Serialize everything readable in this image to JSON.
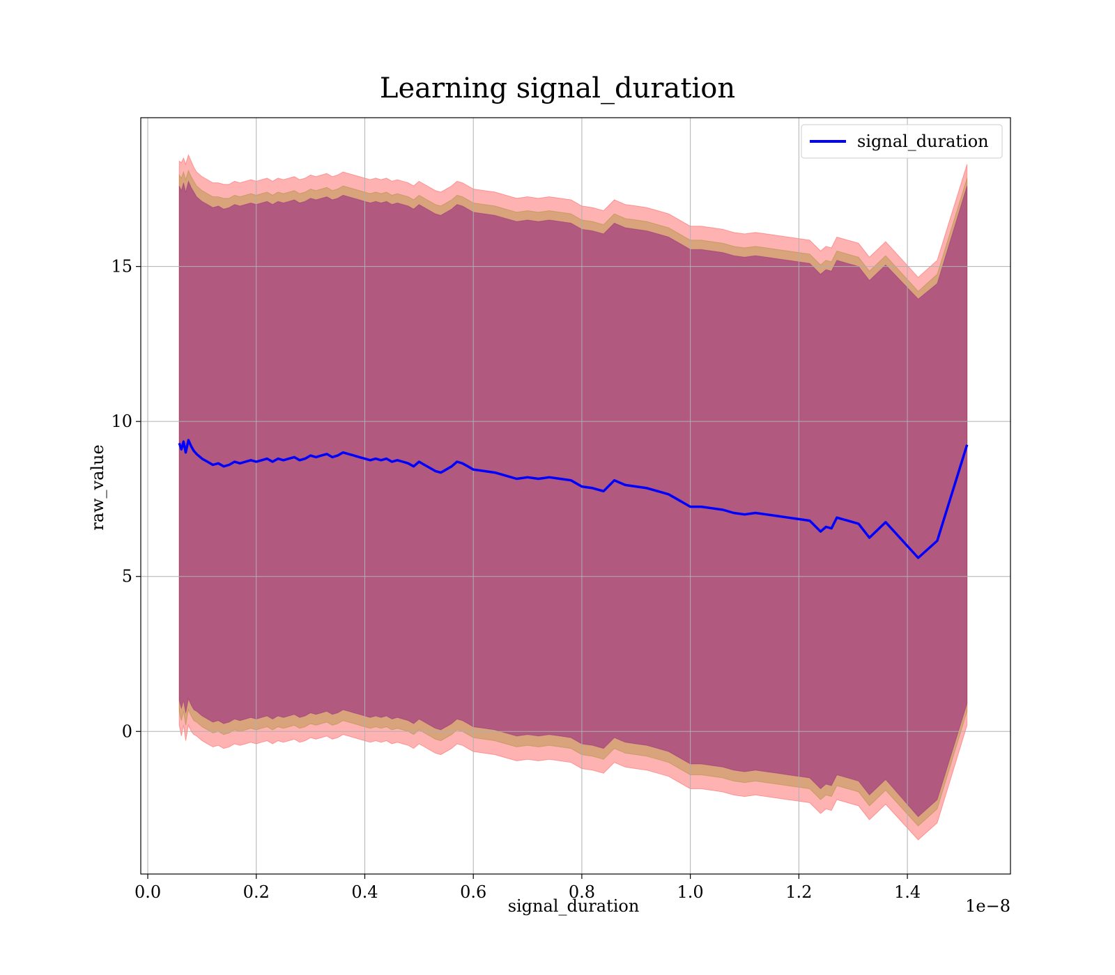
{
  "chart_data": {
    "type": "line",
    "title": "Learning signal_duration",
    "xlabel": "signal_duration",
    "ylabel": "raw_value",
    "x_offset_label": "1e−8",
    "xlim": [
      -0.0129,
      1.59
    ],
    "ylim": [
      -4.6,
      19.8
    ],
    "x_ticks": [
      0.0,
      0.2,
      0.4,
      0.6,
      0.8,
      1.0,
      1.2,
      1.4
    ],
    "x_tick_labels": [
      "0.0",
      "0.2",
      "0.4",
      "0.6",
      "0.8",
      "1.0",
      "1.2",
      "1.4"
    ],
    "y_ticks": [
      0,
      5,
      10,
      15
    ],
    "y_tick_labels": [
      "0",
      "5",
      "10",
      "15"
    ],
    "grid": true,
    "legend_position": "top-right",
    "colors": {
      "line": "#0000ff",
      "outer_band": "#ff0000",
      "mid_band": "#808000",
      "inner_band": "#800080"
    },
    "x_unit_scale": "1e-8",
    "series": [
      {
        "name": "signal_duration",
        "x": [
          0.058,
          0.062,
          0.066,
          0.07,
          0.075,
          0.08,
          0.085,
          0.09,
          0.1,
          0.11,
          0.12,
          0.13,
          0.14,
          0.15,
          0.16,
          0.17,
          0.18,
          0.19,
          0.2,
          0.21,
          0.22,
          0.23,
          0.24,
          0.25,
          0.26,
          0.27,
          0.28,
          0.29,
          0.3,
          0.31,
          0.32,
          0.33,
          0.34,
          0.35,
          0.36,
          0.37,
          0.38,
          0.39,
          0.4,
          0.41,
          0.42,
          0.43,
          0.44,
          0.45,
          0.46,
          0.47,
          0.48,
          0.49,
          0.5,
          0.51,
          0.52,
          0.53,
          0.54,
          0.55,
          0.56,
          0.57,
          0.58,
          0.59,
          0.6,
          0.62,
          0.64,
          0.66,
          0.68,
          0.7,
          0.72,
          0.74,
          0.76,
          0.78,
          0.8,
          0.82,
          0.84,
          0.86,
          0.88,
          0.9,
          0.92,
          0.94,
          0.96,
          0.98,
          1.0,
          1.02,
          1.04,
          1.06,
          1.08,
          1.1,
          1.12,
          1.14,
          1.16,
          1.18,
          1.2,
          1.22,
          1.24,
          1.25,
          1.26,
          1.27,
          1.28,
          1.29,
          1.3,
          1.31,
          1.33,
          1.36,
          1.42,
          1.455,
          1.51
        ],
        "values": [
          9.3,
          9.1,
          9.35,
          9.0,
          9.4,
          9.2,
          9.05,
          8.95,
          8.8,
          8.7,
          8.6,
          8.65,
          8.55,
          8.6,
          8.7,
          8.65,
          8.7,
          8.75,
          8.7,
          8.75,
          8.8,
          8.7,
          8.8,
          8.75,
          8.8,
          8.85,
          8.75,
          8.8,
          8.9,
          8.85,
          8.9,
          8.95,
          8.85,
          8.9,
          9.0,
          8.95,
          8.9,
          8.85,
          8.8,
          8.75,
          8.8,
          8.75,
          8.8,
          8.7,
          8.75,
          8.7,
          8.65,
          8.55,
          8.7,
          8.6,
          8.5,
          8.4,
          8.35,
          8.45,
          8.55,
          8.7,
          8.65,
          8.55,
          8.45,
          8.4,
          8.35,
          8.25,
          8.15,
          8.2,
          8.15,
          8.2,
          8.15,
          8.1,
          7.9,
          7.85,
          7.75,
          8.1,
          7.95,
          7.9,
          7.85,
          7.75,
          7.65,
          7.45,
          7.25,
          7.25,
          7.2,
          7.15,
          7.05,
          7.0,
          7.05,
          7.0,
          6.95,
          6.9,
          6.85,
          6.8,
          6.45,
          6.6,
          6.55,
          6.9,
          6.85,
          6.8,
          6.75,
          6.7,
          6.25,
          6.75,
          5.6,
          6.15,
          9.25
        ]
      }
    ],
    "bands": [
      {
        "color": "outer_band",
        "upper": [
          18.4,
          18.35,
          18.5,
          18.3,
          18.6,
          18.4,
          18.2,
          18.05,
          17.9,
          17.8,
          17.7,
          17.7,
          17.65,
          17.65,
          17.75,
          17.7,
          17.75,
          17.8,
          17.75,
          17.8,
          17.85,
          17.75,
          17.85,
          17.8,
          17.85,
          17.9,
          17.8,
          17.85,
          17.95,
          17.9,
          17.95,
          18.0,
          17.9,
          17.95,
          18.05,
          18.0,
          17.95,
          17.9,
          17.85,
          17.8,
          17.85,
          17.8,
          17.85,
          17.75,
          17.8,
          17.75,
          17.7,
          17.6,
          17.75,
          17.65,
          17.55,
          17.45,
          17.4,
          17.5,
          17.6,
          17.75,
          17.7,
          17.6,
          17.5,
          17.45,
          17.4,
          17.3,
          17.2,
          17.25,
          17.2,
          17.25,
          17.2,
          17.15,
          16.95,
          16.9,
          16.8,
          17.15,
          17.0,
          16.95,
          16.9,
          16.8,
          16.7,
          16.5,
          16.3,
          16.3,
          16.25,
          16.2,
          16.1,
          16.05,
          16.1,
          16.05,
          16.0,
          15.95,
          15.9,
          15.85,
          15.5,
          15.65,
          15.6,
          15.95,
          15.9,
          15.85,
          15.8,
          15.75,
          15.3,
          15.8,
          14.65,
          15.2,
          18.3
        ],
        "lower": [
          0.2,
          -0.15,
          0.2,
          -0.3,
          0.2,
          0.0,
          -0.1,
          -0.15,
          -0.3,
          -0.4,
          -0.5,
          -0.45,
          -0.55,
          -0.5,
          -0.4,
          -0.45,
          -0.4,
          -0.35,
          -0.4,
          -0.35,
          -0.3,
          -0.4,
          -0.3,
          -0.35,
          -0.3,
          -0.25,
          -0.35,
          -0.3,
          -0.2,
          -0.25,
          -0.2,
          -0.15,
          -0.25,
          -0.2,
          -0.1,
          -0.15,
          -0.2,
          -0.25,
          -0.3,
          -0.35,
          -0.3,
          -0.35,
          -0.3,
          -0.4,
          -0.35,
          -0.4,
          -0.45,
          -0.55,
          -0.4,
          -0.5,
          -0.6,
          -0.7,
          -0.75,
          -0.65,
          -0.55,
          -0.4,
          -0.45,
          -0.55,
          -0.65,
          -0.7,
          -0.75,
          -0.85,
          -0.95,
          -0.9,
          -0.95,
          -0.9,
          -0.95,
          -1.0,
          -1.2,
          -1.25,
          -1.35,
          -1.0,
          -1.15,
          -1.2,
          -1.25,
          -1.35,
          -1.45,
          -1.65,
          -1.85,
          -1.85,
          -1.9,
          -1.95,
          -2.05,
          -2.1,
          -2.05,
          -2.1,
          -2.15,
          -2.2,
          -2.25,
          -2.3,
          -2.65,
          -2.5,
          -2.55,
          -2.2,
          -2.25,
          -2.3,
          -2.35,
          -2.4,
          -2.85,
          -2.35,
          -3.5,
          -2.95,
          0.2
        ]
      },
      {
        "color": "mid_band",
        "upper": [
          17.95,
          17.85,
          18.05,
          17.8,
          18.1,
          17.9,
          17.75,
          17.6,
          17.45,
          17.35,
          17.25,
          17.25,
          17.2,
          17.2,
          17.3,
          17.25,
          17.3,
          17.35,
          17.3,
          17.35,
          17.4,
          17.3,
          17.4,
          17.35,
          17.4,
          17.45,
          17.35,
          17.4,
          17.5,
          17.45,
          17.5,
          17.55,
          17.45,
          17.5,
          17.6,
          17.55,
          17.5,
          17.45,
          17.4,
          17.35,
          17.4,
          17.35,
          17.4,
          17.3,
          17.35,
          17.3,
          17.25,
          17.15,
          17.3,
          17.2,
          17.1,
          17.0,
          16.95,
          17.05,
          17.15,
          17.3,
          17.25,
          17.15,
          17.05,
          17.0,
          16.95,
          16.85,
          16.75,
          16.8,
          16.75,
          16.8,
          16.75,
          16.7,
          16.5,
          16.45,
          16.35,
          16.7,
          16.55,
          16.5,
          16.45,
          16.35,
          16.25,
          16.05,
          15.85,
          15.85,
          15.8,
          15.75,
          15.65,
          15.6,
          15.65,
          15.6,
          15.55,
          15.5,
          15.45,
          15.4,
          15.05,
          15.2,
          15.15,
          15.5,
          15.45,
          15.4,
          15.35,
          15.3,
          14.85,
          15.35,
          14.2,
          14.75,
          17.85
        ],
        "lower": [
          0.65,
          0.35,
          0.65,
          0.2,
          0.7,
          0.5,
          0.35,
          0.3,
          0.15,
          0.05,
          -0.05,
          0.0,
          -0.1,
          -0.05,
          0.05,
          0.0,
          0.05,
          0.1,
          0.05,
          0.1,
          0.15,
          0.05,
          0.15,
          0.1,
          0.15,
          0.2,
          0.1,
          0.15,
          0.25,
          0.2,
          0.25,
          0.3,
          0.2,
          0.25,
          0.35,
          0.3,
          0.25,
          0.2,
          0.15,
          0.1,
          0.15,
          0.1,
          0.15,
          0.05,
          0.1,
          0.05,
          0.0,
          -0.1,
          0.05,
          -0.05,
          -0.15,
          -0.25,
          -0.3,
          -0.2,
          -0.1,
          0.05,
          0.0,
          -0.1,
          -0.2,
          -0.25,
          -0.3,
          -0.4,
          -0.5,
          -0.45,
          -0.5,
          -0.45,
          -0.5,
          -0.55,
          -0.75,
          -0.8,
          -0.9,
          -0.55,
          -0.7,
          -0.75,
          -0.8,
          -0.9,
          -1.0,
          -1.2,
          -1.4,
          -1.4,
          -1.45,
          -1.5,
          -1.6,
          -1.65,
          -1.6,
          -1.65,
          -1.7,
          -1.75,
          -1.8,
          -1.85,
          -2.2,
          -2.05,
          -2.1,
          -1.75,
          -1.8,
          -1.85,
          -1.9,
          -1.95,
          -2.4,
          -1.9,
          -3.05,
          -2.5,
          0.65
        ]
      },
      {
        "color": "inner_band",
        "upper": [
          17.6,
          17.45,
          17.7,
          17.4,
          17.75,
          17.55,
          17.4,
          17.25,
          17.1,
          17.0,
          16.9,
          16.95,
          16.85,
          16.9,
          17.0,
          16.95,
          17.0,
          17.05,
          17.0,
          17.05,
          17.1,
          17.0,
          17.1,
          17.05,
          17.1,
          17.15,
          17.05,
          17.1,
          17.2,
          17.15,
          17.2,
          17.25,
          17.15,
          17.2,
          17.3,
          17.25,
          17.2,
          17.15,
          17.1,
          17.05,
          17.1,
          17.05,
          17.1,
          17.0,
          17.05,
          17.0,
          16.95,
          16.85,
          17.0,
          16.9,
          16.8,
          16.7,
          16.65,
          16.75,
          16.85,
          17.0,
          16.95,
          16.85,
          16.75,
          16.7,
          16.65,
          16.55,
          16.45,
          16.5,
          16.45,
          16.5,
          16.45,
          16.4,
          16.2,
          16.15,
          16.05,
          16.4,
          16.25,
          16.2,
          16.15,
          16.05,
          15.95,
          15.75,
          15.55,
          15.55,
          15.5,
          15.45,
          15.35,
          15.3,
          15.35,
          15.3,
          15.25,
          15.2,
          15.15,
          15.1,
          14.75,
          14.9,
          14.85,
          15.2,
          15.15,
          15.1,
          15.05,
          15.0,
          14.55,
          15.05,
          13.95,
          14.45,
          17.6
        ],
        "lower": [
          1.0,
          0.75,
          1.0,
          0.6,
          1.05,
          0.85,
          0.7,
          0.65,
          0.5,
          0.4,
          0.3,
          0.35,
          0.25,
          0.3,
          0.4,
          0.35,
          0.4,
          0.45,
          0.4,
          0.45,
          0.5,
          0.4,
          0.5,
          0.45,
          0.5,
          0.55,
          0.45,
          0.5,
          0.6,
          0.55,
          0.6,
          0.65,
          0.55,
          0.6,
          0.7,
          0.65,
          0.6,
          0.55,
          0.5,
          0.45,
          0.5,
          0.45,
          0.5,
          0.4,
          0.45,
          0.4,
          0.35,
          0.25,
          0.4,
          0.3,
          0.2,
          0.1,
          0.05,
          0.15,
          0.25,
          0.4,
          0.35,
          0.25,
          0.15,
          0.1,
          0.05,
          -0.05,
          -0.15,
          -0.1,
          -0.15,
          -0.1,
          -0.15,
          -0.2,
          -0.4,
          -0.45,
          -0.55,
          -0.2,
          -0.35,
          -0.4,
          -0.45,
          -0.55,
          -0.65,
          -0.85,
          -1.05,
          -1.05,
          -1.1,
          -1.15,
          -1.25,
          -1.3,
          -1.25,
          -1.3,
          -1.35,
          -1.4,
          -1.45,
          -1.5,
          -1.85,
          -1.7,
          -1.75,
          -1.4,
          -1.45,
          -1.5,
          -1.55,
          -1.6,
          -2.05,
          -1.55,
          -2.75,
          -2.2,
          0.9
        ]
      }
    ]
  }
}
